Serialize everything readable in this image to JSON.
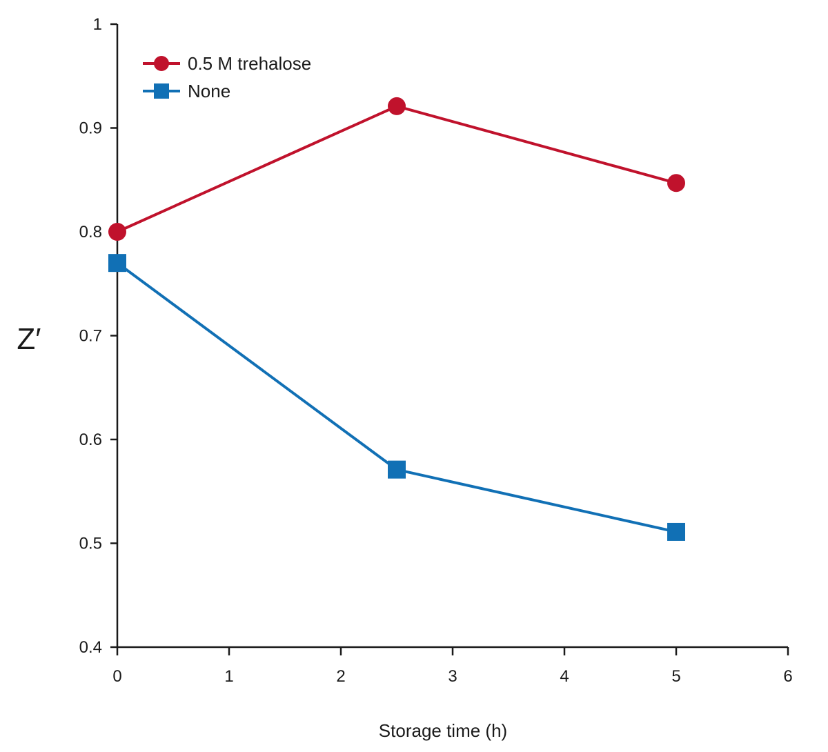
{
  "chart_data": {
    "type": "line",
    "xlabel": "Storage time (h)",
    "ylabel": "Z′",
    "xlim": [
      0,
      6
    ],
    "ylim": [
      0.4,
      1
    ],
    "xticks": [
      "0",
      "1",
      "2",
      "3",
      "4",
      "5",
      "6"
    ],
    "yticks": [
      "0.4",
      "0.5",
      "0.6",
      "0.7",
      "0.8",
      "0.9",
      "1"
    ],
    "grid": false,
    "legend_position": "top-left",
    "series": [
      {
        "name": "0.5 M trehalose",
        "marker": "circle",
        "color": "#c0122c",
        "x": [
          0,
          2.5,
          5
        ],
        "y": [
          0.8,
          0.921,
          0.847
        ]
      },
      {
        "name": "None",
        "marker": "square",
        "color": "#1170b5",
        "x": [
          0,
          2.5,
          5
        ],
        "y": [
          0.77,
          0.571,
          0.511
        ]
      }
    ]
  }
}
